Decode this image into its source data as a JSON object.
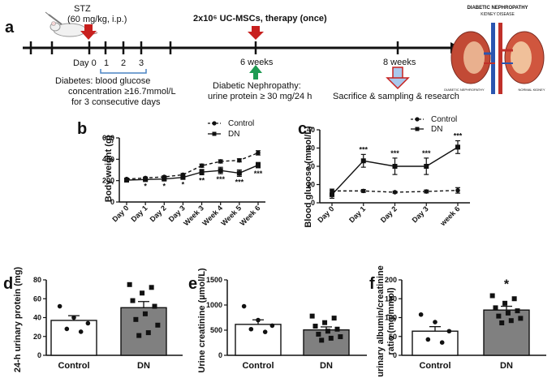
{
  "figure": {
    "panel_labels": [
      "a",
      "b",
      "c",
      "d",
      "e",
      "f"
    ]
  },
  "timeline": {
    "stz_label": "STZ",
    "stz_dose": "(60 mg/kg, i.p.)",
    "therapy_label": "2x10⁶ UC-MSCs, therapy (once)",
    "day0_label": "Day 0",
    "day_ticks": [
      "1",
      "2",
      "3"
    ],
    "week6_label": "6 weeks",
    "week8_label": "8 weeks",
    "diabetes_line1": "Diabetes: blood glucose",
    "diabetes_line2": "concentration ≥16.7mmol/L",
    "diabetes_line3": "for 3 consecutive days",
    "dn_line1": "Diabetic Nephropathy:",
    "dn_line2": "urine protein ≥ 30 mg/24 h",
    "sacrifice_label": "Sacrifice & sampling & research",
    "kidney_title": "DIABETIC NEPHROPATHY",
    "kidney_subtitle": "KIDNEY DISEASE",
    "kidney_caption_left": "DIABETIC NEPHROPATHY",
    "kidney_caption_right": "NORMAL KIDNEY"
  },
  "colors": {
    "arrow_red": "#c8201e",
    "arrow_green": "#1e9a52",
    "arrow_blue_fill": "#a9c8ec",
    "bracket_blue": "#4a84c4",
    "bar_dn": "#808080",
    "bar_control": "#ffffff"
  },
  "chart_data": [
    {
      "panel": "b",
      "type": "line",
      "title": "",
      "ylabel": "Body weight (g)",
      "xlabel": "",
      "categories": [
        "Day 0",
        "Day 1",
        "Day 2",
        "Day 3",
        "Week 3",
        "Week 4",
        "Week 5",
        "Week 6"
      ],
      "ylim": [
        0,
        600
      ],
      "yticks": [
        0,
        200,
        400,
        600
      ],
      "legend": "top-left",
      "series": [
        {
          "name": "Control",
          "style": "dashed-circle",
          "values": [
            215,
            225,
            235,
            255,
            340,
            380,
            390,
            460
          ],
          "errors": [
            8,
            8,
            10,
            12,
            15,
            15,
            15,
            20
          ]
        },
        {
          "name": "DN",
          "style": "solid-square",
          "values": [
            205,
            210,
            215,
            230,
            280,
            295,
            270,
            345
          ],
          "errors": [
            8,
            10,
            12,
            15,
            25,
            30,
            30,
            25
          ]
        }
      ],
      "annotations": [
        "*",
        "*",
        "*",
        "**",
        "***",
        "***",
        "***"
      ]
    },
    {
      "panel": "c",
      "type": "line",
      "title": "",
      "ylabel": "Blood glucose (mmol/L)",
      "xlabel": "",
      "categories": [
        "Day 0",
        "Day 1",
        "Day 2",
        "Day 3",
        "week 6"
      ],
      "ylim": [
        0,
        40
      ],
      "yticks": [
        0,
        10,
        20,
        30,
        40
      ],
      "legend": "top-right",
      "series": [
        {
          "name": "Control",
          "style": "dashed-circle",
          "values": [
            6.5,
            6.5,
            5.8,
            6.2,
            6.8
          ],
          "errors": [
            1.0,
            0.8,
            0.5,
            0.8,
            1.5
          ]
        },
        {
          "name": "DN",
          "style": "solid-square",
          "values": [
            4.5,
            23,
            20,
            20,
            30.5
          ],
          "errors": [
            2.0,
            3.5,
            4.5,
            4.5,
            3.5
          ]
        }
      ],
      "annotations": [
        "***",
        "***",
        "***",
        "***"
      ]
    },
    {
      "panel": "d",
      "type": "bar",
      "title": "",
      "ylabel": "24-h urinary protein  (mg)",
      "xlabel": "",
      "categories": [
        "Control",
        "DN"
      ],
      "values": [
        37,
        50.5
      ],
      "errors": [
        5,
        6.5
      ],
      "ylim": [
        0,
        80
      ],
      "yticks": [
        0,
        20,
        40,
        60,
        80
      ],
      "points": [
        [
          52,
          40,
          34,
          28,
          25
        ],
        [
          75,
          72,
          66,
          58,
          52,
          44,
          38,
          32,
          24,
          21
        ]
      ],
      "significance": ""
    },
    {
      "panel": "e",
      "type": "bar",
      "title": "",
      "ylabel": "Urine creatinine (µmol/L)",
      "xlabel": "",
      "categories": [
        "Control",
        "DN"
      ],
      "values": [
        615,
        505
      ],
      "errors": [
        90,
        60
      ],
      "ylim": [
        0,
        1500
      ],
      "yticks": [
        0,
        500,
        1000,
        1500
      ],
      "points": [
        [
          975,
          700,
          590,
          520,
          465
        ],
        [
          780,
          740,
          650,
          580,
          520,
          480,
          420,
          370,
          340,
          300
        ]
      ],
      "significance": ""
    },
    {
      "panel": "f",
      "type": "bar",
      "title": "",
      "ylabel": "urinary albumin/creatinine ratio (mg/mmol)",
      "xlabel": "",
      "categories": [
        "Control",
        "DN"
      ],
      "values": [
        64,
        120
      ],
      "errors": [
        12,
        10
      ],
      "ylim": [
        0,
        200
      ],
      "yticks": [
        0,
        50,
        100,
        150,
        200
      ],
      "points": [
        [
          108,
          88,
          64,
          42,
          34
        ],
        [
          158,
          150,
          138,
          126,
          118,
          112,
          104,
          98,
          92,
          86
        ]
      ],
      "significance": "*"
    }
  ]
}
